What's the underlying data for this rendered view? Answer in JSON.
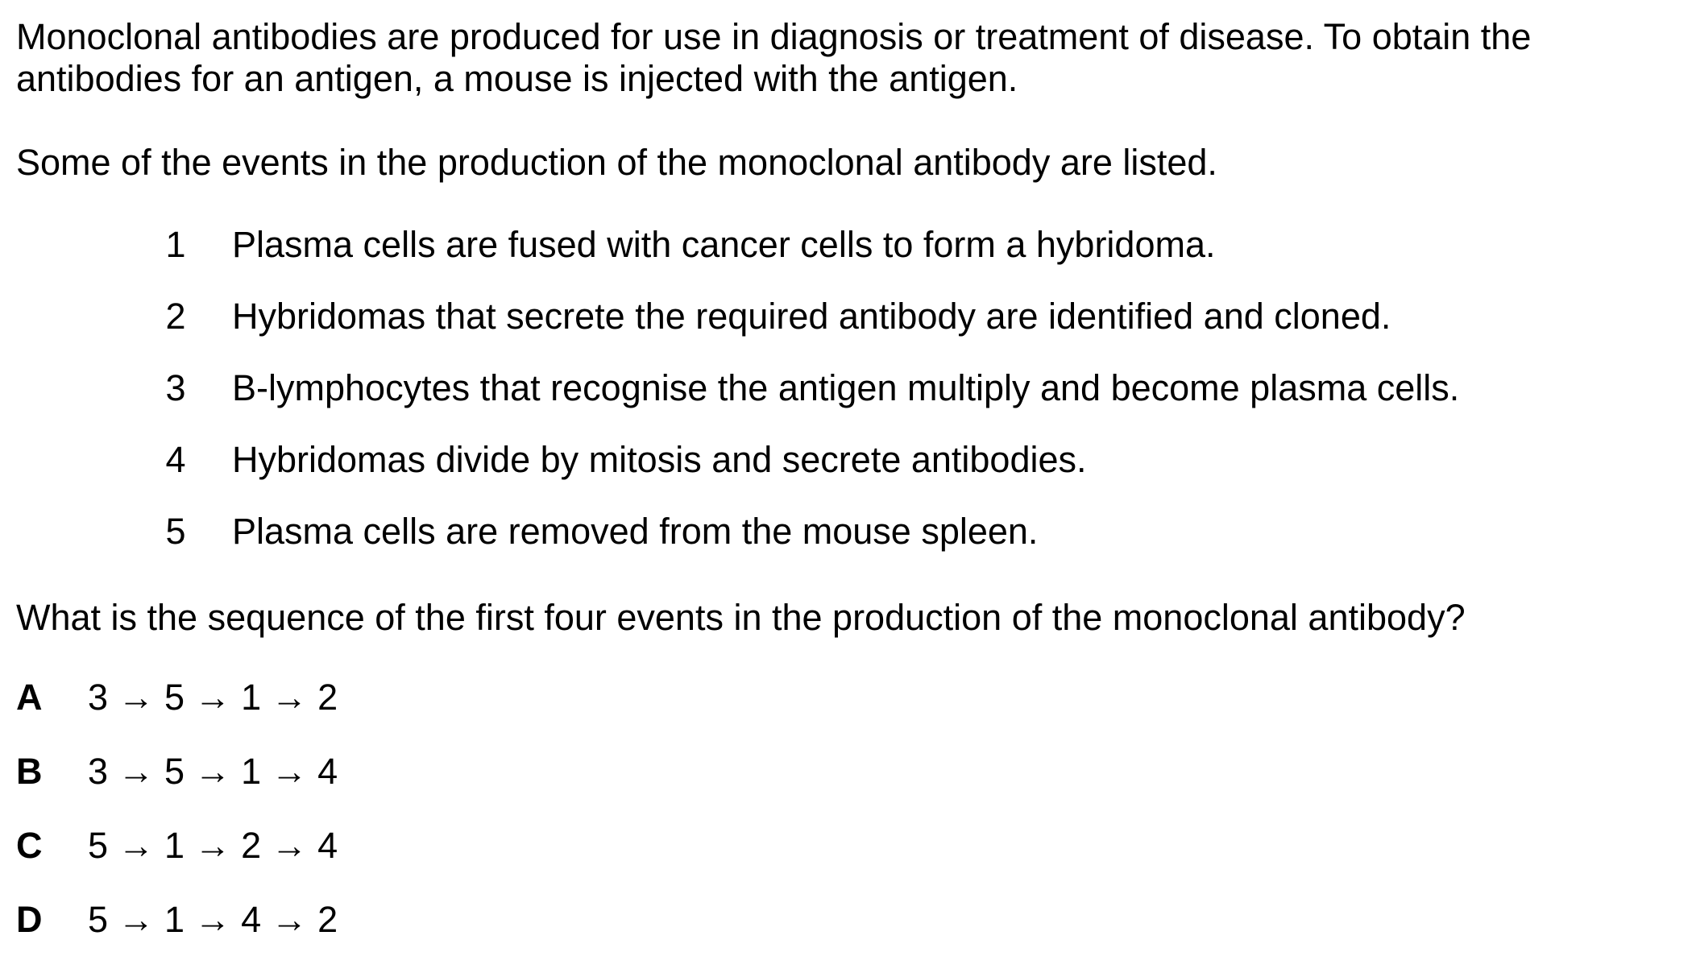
{
  "intro": {
    "line1": "Monoclonal antibodies are produced for use in diagnosis or treatment of disease. To obtain the",
    "line2": "antibodies for an antigen, a mouse is injected with the antigen."
  },
  "lead": "Some of the events in the production of the monoclonal antibody are listed.",
  "events": [
    {
      "num": "1",
      "text": "Plasma cells are fused with cancer cells to form a hybridoma."
    },
    {
      "num": "2",
      "text": "Hybridomas that secrete the required antibody are identified and cloned."
    },
    {
      "num": "3",
      "text": "B-lymphocytes that recognise the antigen multiply and become plasma cells."
    },
    {
      "num": "4",
      "text": "Hybridomas divide by mitosis and secrete antibodies."
    },
    {
      "num": "5",
      "text": "Plasma cells are removed from the mouse spleen."
    }
  ],
  "question": "What is the sequence of the first four events in the production of the monoclonal antibody?",
  "options": [
    {
      "letter": "A",
      "sequence": "3 → 5 → 1 → 2"
    },
    {
      "letter": "B",
      "sequence": "3 → 5 → 1 → 4"
    },
    {
      "letter": "C",
      "sequence": "5 → 1 → 2 → 4"
    },
    {
      "letter": "D",
      "sequence": "5 → 1 → 4 → 2"
    }
  ]
}
